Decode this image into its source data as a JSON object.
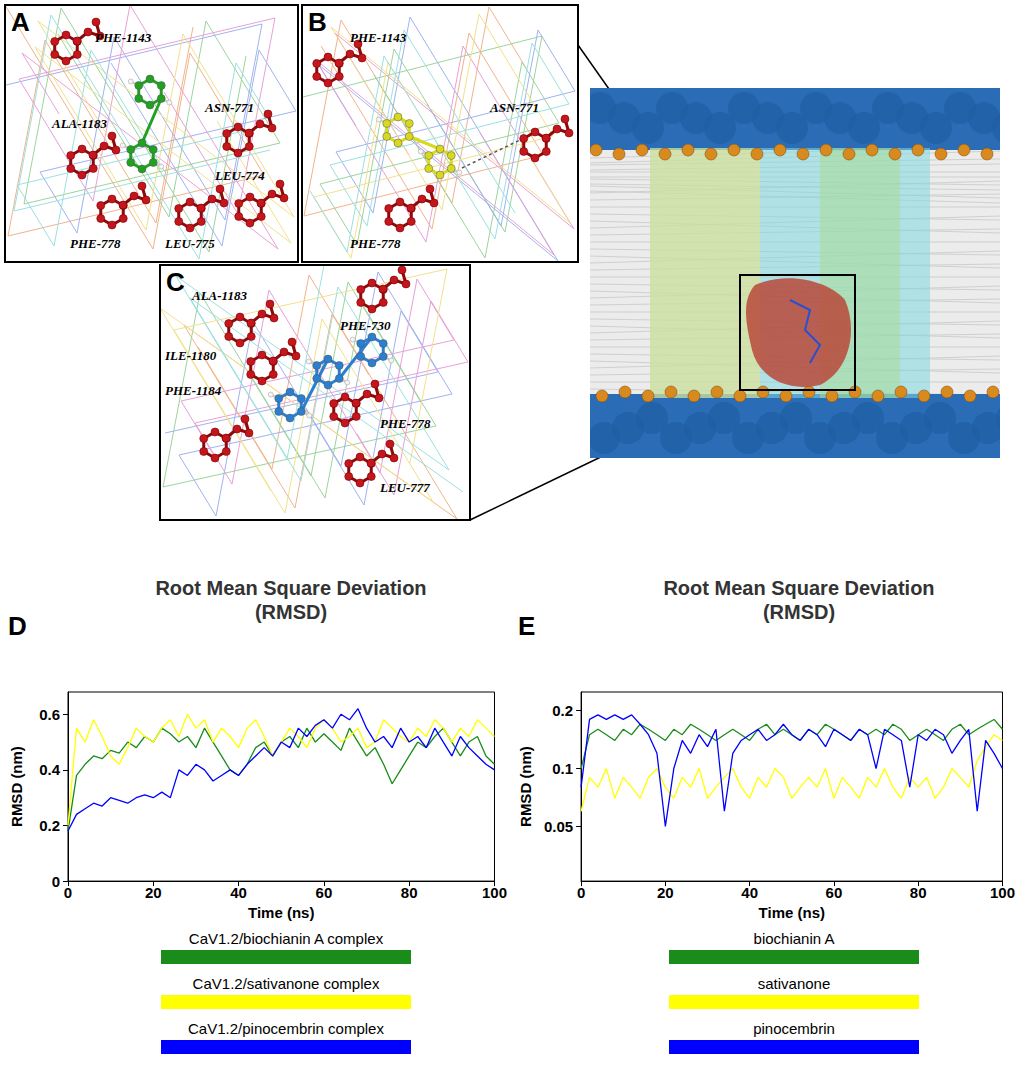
{
  "figure": {
    "panels": [
      {
        "label": "A",
        "color": "#22a022",
        "residues": [
          "PHE-1143",
          "ALA-1183",
          "ASN-771",
          "LEU-774",
          "PHE-778",
          "LEU-775"
        ]
      },
      {
        "label": "B",
        "color": "#d8d820",
        "residues": [
          "PHE-1143",
          "ASN-771",
          "PHE-778"
        ]
      },
      {
        "label": "C",
        "color": "#2a7fd0",
        "residues": [
          "ALA-1183",
          "PHE-730",
          "ILE-1180",
          "PHE-1184",
          "PHE-778",
          "LEU-777"
        ]
      }
    ]
  },
  "chart_data": [
    {
      "type": "line",
      "panel_label": "D",
      "title": "Root Mean Square Deviation",
      "subtitle": "(RMSD)",
      "x_label": "Time (ns)",
      "y_label": "RMSD (nm)",
      "x": [
        0,
        2,
        4,
        6,
        8,
        10,
        12,
        14,
        16,
        18,
        20,
        22,
        24,
        26,
        28,
        30,
        32,
        34,
        36,
        38,
        40,
        42,
        44,
        46,
        48,
        50,
        52,
        54,
        56,
        58,
        60,
        62,
        64,
        66,
        68,
        70,
        72,
        74,
        76,
        78,
        80,
        82,
        84,
        86,
        88,
        90,
        92,
        94,
        96,
        98,
        100
      ],
      "xlim": [
        0,
        100
      ],
      "xticks": [
        0,
        20,
        40,
        60,
        80,
        100
      ],
      "ylim": [
        0,
        0.68
      ],
      "yticks": [
        0,
        0.2,
        0.4,
        0.6
      ],
      "grid": false,
      "legend": "bottom",
      "series": [
        {
          "name": "CaV1.2/biochianin A complex",
          "color": "#1a8c1a",
          "values": [
            0.18,
            0.38,
            0.42,
            0.45,
            0.44,
            0.47,
            0.46,
            0.5,
            0.48,
            0.52,
            0.5,
            0.55,
            0.53,
            0.5,
            0.52,
            0.48,
            0.55,
            0.5,
            0.45,
            0.4,
            0.38,
            0.42,
            0.48,
            0.5,
            0.45,
            0.5,
            0.52,
            0.48,
            0.55,
            0.5,
            0.53,
            0.5,
            0.47,
            0.55,
            0.5,
            0.45,
            0.48,
            0.42,
            0.35,
            0.4,
            0.45,
            0.5,
            0.48,
            0.52,
            0.55,
            0.5,
            0.45,
            0.5,
            0.52,
            0.45,
            0.42
          ]
        },
        {
          "name": "CaV1.2/sativanone complex",
          "color": "#ffff00",
          "values": [
            0.2,
            0.55,
            0.5,
            0.58,
            0.52,
            0.45,
            0.42,
            0.48,
            0.55,
            0.52,
            0.5,
            0.55,
            0.58,
            0.52,
            0.6,
            0.55,
            0.58,
            0.5,
            0.55,
            0.52,
            0.48,
            0.55,
            0.58,
            0.52,
            0.45,
            0.5,
            0.55,
            0.52,
            0.48,
            0.55,
            0.58,
            0.55,
            0.5,
            0.52,
            0.55,
            0.48,
            0.5,
            0.58,
            0.55,
            0.52,
            0.5,
            0.55,
            0.52,
            0.58,
            0.55,
            0.5,
            0.55,
            0.52,
            0.58,
            0.55,
            0.52
          ]
        },
        {
          "name": "CaV1.2/pinocembrin complex",
          "color": "#0000ff",
          "values": [
            0.18,
            0.24,
            0.26,
            0.28,
            0.27,
            0.3,
            0.29,
            0.28,
            0.3,
            0.31,
            0.3,
            0.32,
            0.3,
            0.4,
            0.38,
            0.42,
            0.4,
            0.36,
            0.38,
            0.4,
            0.38,
            0.42,
            0.45,
            0.48,
            0.45,
            0.5,
            0.48,
            0.55,
            0.52,
            0.56,
            0.58,
            0.55,
            0.6,
            0.58,
            0.62,
            0.55,
            0.5,
            0.52,
            0.48,
            0.55,
            0.5,
            0.52,
            0.48,
            0.55,
            0.5,
            0.45,
            0.52,
            0.48,
            0.45,
            0.42,
            0.4
          ]
        }
      ]
    },
    {
      "type": "line",
      "panel_label": "E",
      "title": "Root Mean Square Deviation",
      "subtitle": "(RMSD)",
      "x_label": "Time (ns)",
      "y_label": "RMSD (nm)",
      "x": [
        0,
        2,
        4,
        6,
        8,
        10,
        12,
        14,
        16,
        18,
        20,
        22,
        24,
        26,
        28,
        30,
        32,
        34,
        36,
        38,
        40,
        42,
        44,
        46,
        48,
        50,
        52,
        54,
        56,
        58,
        60,
        62,
        64,
        66,
        68,
        70,
        72,
        74,
        76,
        78,
        80,
        82,
        84,
        86,
        88,
        90,
        92,
        94,
        96,
        98,
        100
      ],
      "xlim": [
        0,
        100
      ],
      "xticks": [
        0,
        20,
        40,
        60,
        80,
        100
      ],
      "log": "y",
      "ylim": [
        0.026,
        0.25
      ],
      "yticks": [
        0.05,
        0.1,
        0.2
      ],
      "grid": false,
      "legend": "bottom",
      "series": [
        {
          "name": "biochianin A",
          "color": "#1a8c1a",
          "values": [
            0.1,
            0.15,
            0.16,
            0.15,
            0.14,
            0.16,
            0.15,
            0.17,
            0.16,
            0.15,
            0.14,
            0.16,
            0.15,
            0.17,
            0.16,
            0.15,
            0.14,
            0.15,
            0.16,
            0.15,
            0.14,
            0.16,
            0.17,
            0.15,
            0.16,
            0.15,
            0.14,
            0.16,
            0.15,
            0.17,
            0.16,
            0.15,
            0.14,
            0.16,
            0.15,
            0.16,
            0.15,
            0.17,
            0.16,
            0.14,
            0.15,
            0.16,
            0.15,
            0.14,
            0.16,
            0.17,
            0.15,
            0.16,
            0.17,
            0.18,
            0.16
          ]
        },
        {
          "name": "sativanone",
          "color": "#ffff00",
          "values": [
            0.06,
            0.09,
            0.08,
            0.1,
            0.07,
            0.09,
            0.08,
            0.07,
            0.09,
            0.1,
            0.08,
            0.07,
            0.09,
            0.08,
            0.1,
            0.07,
            0.08,
            0.09,
            0.1,
            0.08,
            0.07,
            0.09,
            0.08,
            0.1,
            0.09,
            0.07,
            0.08,
            0.09,
            0.08,
            0.1,
            0.07,
            0.09,
            0.08,
            0.07,
            0.09,
            0.08,
            0.1,
            0.08,
            0.07,
            0.09,
            0.08,
            0.09,
            0.07,
            0.08,
            0.1,
            0.09,
            0.08,
            0.11,
            0.13,
            0.15,
            0.14
          ]
        },
        {
          "name": "pinocembrin",
          "color": "#0000ff",
          "values": [
            0.08,
            0.18,
            0.19,
            0.18,
            0.19,
            0.18,
            0.19,
            0.17,
            0.15,
            0.12,
            0.05,
            0.1,
            0.14,
            0.12,
            0.15,
            0.13,
            0.16,
            0.06,
            0.12,
            0.14,
            0.15,
            0.16,
            0.14,
            0.15,
            0.17,
            0.15,
            0.14,
            0.16,
            0.15,
            0.13,
            0.16,
            0.15,
            0.14,
            0.16,
            0.15,
            0.1,
            0.16,
            0.15,
            0.14,
            0.08,
            0.15,
            0.14,
            0.16,
            0.15,
            0.12,
            0.14,
            0.16,
            0.06,
            0.14,
            0.12,
            0.1
          ]
        }
      ]
    }
  ]
}
